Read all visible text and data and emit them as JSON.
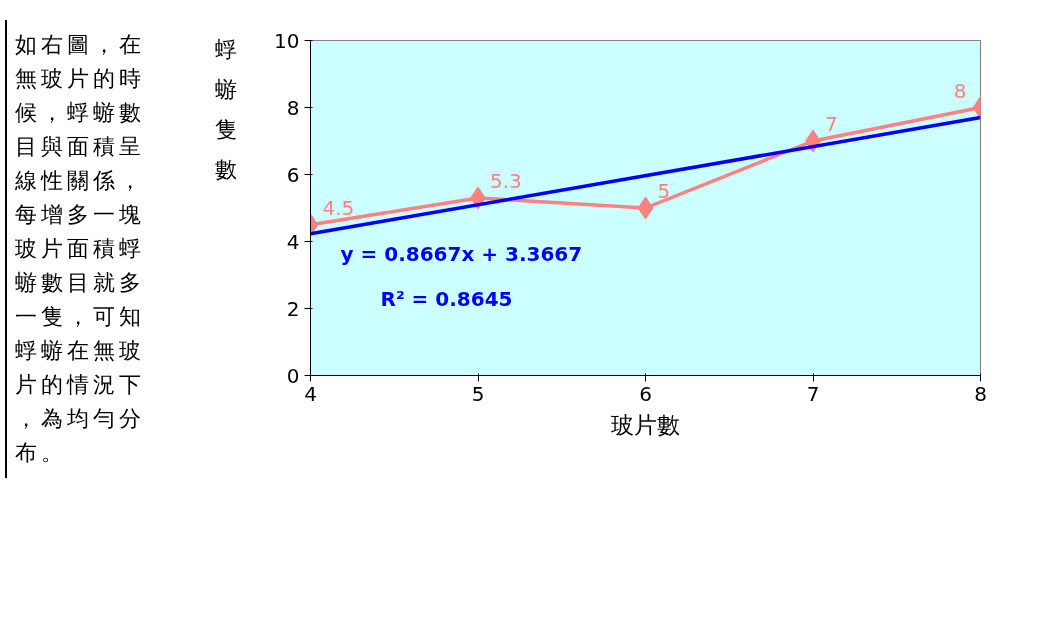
{
  "chart_data": {
    "type": "line",
    "xlabel": "玻片數",
    "ylabel": "蜉蝣隻數",
    "x": [
      4,
      5,
      6,
      7,
      8
    ],
    "series": [
      {
        "color": "#ff8080",
        "values": [
          4.5,
          5.3,
          5,
          7,
          8
        ],
        "marker": "diamond",
        "data_labels": true
      },
      {
        "type": "line",
        "color": "#0000ff",
        "x": [
          4,
          8
        ],
        "values": [
          4.23,
          7.7
        ],
        "marker": "none"
      }
    ],
    "xlim": [
      4,
      8
    ],
    "xticks": [
      4,
      5,
      6,
      7,
      8
    ],
    "ylim": [
      0,
      10
    ],
    "yticks": [
      0,
      2,
      4,
      6,
      8,
      10
    ],
    "grid": false,
    "annotations": [
      "y = 0.8667x + 3.3667",
      "R² = 0.8645",
      "如右圖，在無玻片的時候，蜉蝣數目與面積呈線性關係，每增多一塊玻片面積蜉蝣數目就多一隻，可知蜉蝣在無玻片的情況下，為均勻分布。"
    ]
  }
}
